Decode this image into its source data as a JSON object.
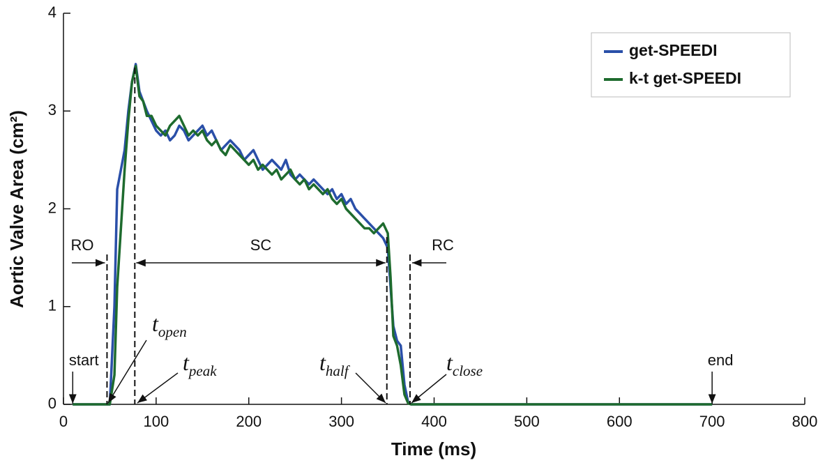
{
  "chart_data": {
    "type": "line",
    "xlabel": "Time (ms)",
    "ylabel": "Aortic Valve Area (cm²)",
    "xlim": [
      0,
      800
    ],
    "xticks": [
      0,
      100,
      200,
      300,
      400,
      500,
      600,
      700,
      800
    ],
    "ylim": [
      0,
      4
    ],
    "yticks": [
      0,
      1,
      2,
      3,
      4
    ],
    "legend": "upper right",
    "x": [
      10,
      50,
      55,
      58,
      62,
      66,
      70,
      74,
      78,
      82,
      86,
      90,
      95,
      100,
      105,
      110,
      115,
      120,
      125,
      130,
      135,
      140,
      145,
      150,
      155,
      160,
      165,
      170,
      175,
      180,
      185,
      190,
      195,
      200,
      205,
      210,
      215,
      220,
      225,
      230,
      235,
      240,
      245,
      250,
      255,
      260,
      265,
      270,
      275,
      280,
      285,
      290,
      295,
      300,
      305,
      310,
      315,
      320,
      325,
      330,
      335,
      340,
      345,
      350,
      353,
      356,
      360,
      364,
      368,
      372,
      375,
      700
    ],
    "series": [
      {
        "name": "get-SPEEDI",
        "color": "#2a4fa8",
        "values": [
          0,
          0,
          1.0,
          2.2,
          2.4,
          2.6,
          3.0,
          3.3,
          3.48,
          3.2,
          3.1,
          3.0,
          2.9,
          2.8,
          2.75,
          2.8,
          2.7,
          2.75,
          2.85,
          2.8,
          2.7,
          2.75,
          2.8,
          2.85,
          2.75,
          2.8,
          2.7,
          2.6,
          2.65,
          2.7,
          2.65,
          2.6,
          2.5,
          2.55,
          2.6,
          2.5,
          2.4,
          2.45,
          2.5,
          2.45,
          2.4,
          2.5,
          2.35,
          2.3,
          2.35,
          2.3,
          2.25,
          2.3,
          2.25,
          2.2,
          2.15,
          2.2,
          2.1,
          2.15,
          2.05,
          2.1,
          2.0,
          1.95,
          1.9,
          1.85,
          1.8,
          1.75,
          1.7,
          1.6,
          1.2,
          0.8,
          0.65,
          0.6,
          0.2,
          0.02,
          0,
          0
        ]
      },
      {
        "name": "k-t get-SPEEDI",
        "color": "#1e6b2e",
        "values": [
          0,
          0,
          0.3,
          1.2,
          1.8,
          2.4,
          2.9,
          3.3,
          3.46,
          3.15,
          3.1,
          2.95,
          2.95,
          2.85,
          2.8,
          2.75,
          2.85,
          2.9,
          2.95,
          2.85,
          2.75,
          2.8,
          2.75,
          2.8,
          2.7,
          2.65,
          2.7,
          2.6,
          2.55,
          2.65,
          2.6,
          2.55,
          2.5,
          2.45,
          2.5,
          2.4,
          2.45,
          2.4,
          2.35,
          2.4,
          2.3,
          2.35,
          2.4,
          2.3,
          2.25,
          2.3,
          2.2,
          2.25,
          2.2,
          2.15,
          2.2,
          2.1,
          2.05,
          2.1,
          2.0,
          1.95,
          1.9,
          1.85,
          1.8,
          1.8,
          1.75,
          1.8,
          1.85,
          1.75,
          1.3,
          0.7,
          0.6,
          0.4,
          0.1,
          0.01,
          0,
          0
        ]
      }
    ],
    "annotations": {
      "phases": [
        "RO",
        "SC",
        "RC"
      ],
      "start": {
        "label": "start",
        "x": 10
      },
      "end": {
        "label": "end",
        "x": 700
      },
      "events": [
        {
          "x": 47,
          "label": "t",
          "sub": "open"
        },
        {
          "x": 77,
          "label": "t",
          "sub": "peak"
        },
        {
          "x": 349,
          "label": "t",
          "sub": "half"
        },
        {
          "x": 374,
          "label": "t",
          "sub": "close"
        }
      ]
    }
  }
}
